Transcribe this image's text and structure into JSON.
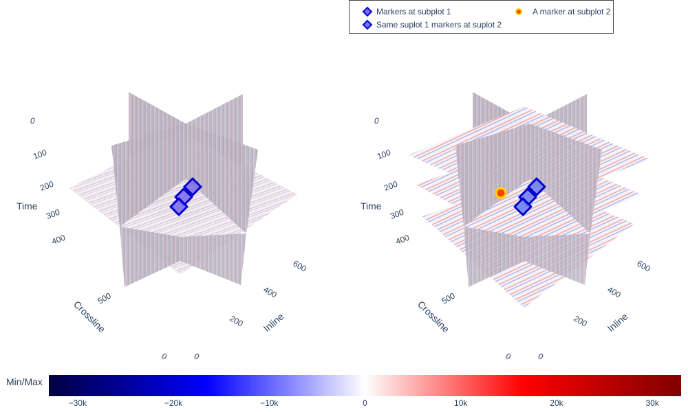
{
  "legend": {
    "items": [
      {
        "label": "Markers at subplot 1",
        "symbol": "diamond",
        "fill": "#7b68ee",
        "stroke": "#0000cd"
      },
      {
        "label": "Same suplot 1 markers at suplot 2",
        "symbol": "diamond",
        "fill": "#6a7cf0",
        "stroke": "#0000cd"
      },
      {
        "label": "A marker at subplot 2",
        "symbol": "circle",
        "fill": "#ff4500",
        "stroke": "#ffd700"
      }
    ]
  },
  "scenes": [
    {
      "name": "subplot 1",
      "axes": {
        "x": {
          "title": "Inline",
          "ticks": [
            "0",
            "200",
            "400",
            "600"
          ]
        },
        "y": {
          "title": "Crossline",
          "ticks": [
            "0",
            "500"
          ]
        },
        "z": {
          "title": "Time",
          "ticks": [
            "0",
            "100",
            "200",
            "300",
            "400"
          ]
        }
      }
    },
    {
      "name": "subplot 2",
      "axes": {
        "x": {
          "title": "Inline",
          "ticks": [
            "0",
            "200",
            "400",
            "600"
          ]
        },
        "y": {
          "title": "Crossline",
          "ticks": [
            "0",
            "500"
          ]
        },
        "z": {
          "title": "Time",
          "ticks": [
            "0",
            "100",
            "200",
            "300",
            "400"
          ]
        }
      }
    }
  ],
  "colorbar": {
    "title": "Min/Max",
    "ticks": [
      "−30k",
      "−20k",
      "−10k",
      "0",
      "10k",
      "20k",
      "30k"
    ],
    "tick_values": [
      -30000,
      -20000,
      -10000,
      0,
      10000,
      20000,
      30000
    ],
    "range": [
      -33000,
      33000
    ],
    "colors": [
      "#000040",
      "#0000ff",
      "#ffffff",
      "#ff0000",
      "#800000"
    ]
  },
  "chart_data": {
    "type": "scatter",
    "series": [
      {
        "name": "Markers at subplot 1",
        "scene": 1,
        "count": 3
      },
      {
        "name": "Same suplot 1 markers at suplot 2",
        "scene": 2,
        "count": 3
      },
      {
        "name": "A marker at subplot 2",
        "scene": 2,
        "count": 1
      }
    ]
  }
}
